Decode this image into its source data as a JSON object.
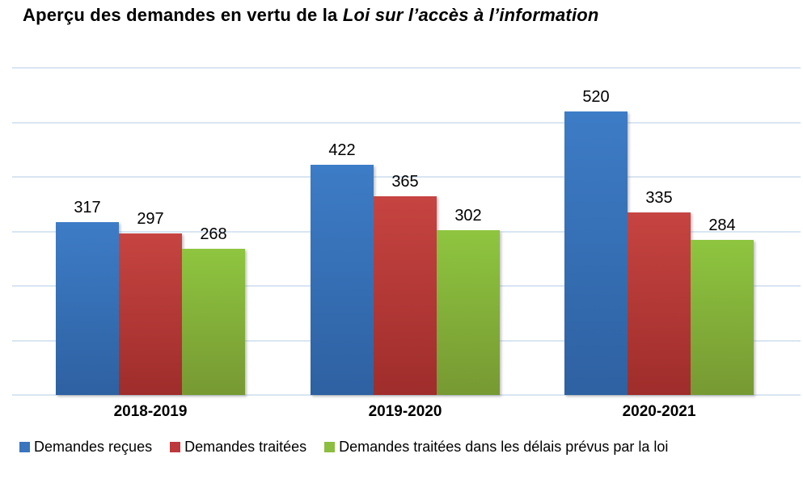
{
  "title": {
    "regular": "Aperçu des demandes en vertu de la ",
    "italic": "Loi sur l’accès à l’information"
  },
  "chart_data": {
    "type": "bar",
    "title": "Aperçu des demandes en vertu de la Loi sur l’accès à l’information",
    "categories": [
      "2018-2019",
      "2019-2020",
      "2020-2021"
    ],
    "series": [
      {
        "name": "Demandes reçues",
        "values": [
          317,
          422,
          520
        ],
        "color_top": "#3d7cc6",
        "color_bottom": "#2e61a2",
        "legend_color": "#3a75be"
      },
      {
        "name": "Demandes traitées",
        "values": [
          297,
          365,
          335
        ],
        "color_top": "#c64441",
        "color_bottom": "#9f2d2b",
        "legend_color": "#be393b"
      },
      {
        "name": "Demandes traitées dans les délais prévus par la loi",
        "values": [
          268,
          302,
          284
        ],
        "color_top": "#8ec53f",
        "color_bottom": "#779933",
        "legend_color": "#8cbe3f"
      }
    ],
    "xlabel": "",
    "ylabel": "",
    "ylim": [
      0,
      600
    ],
    "gridline_step": 100,
    "grid": true,
    "value_labels": true,
    "legend_position": "bottom",
    "gridline_color": "#d9e5f2"
  }
}
